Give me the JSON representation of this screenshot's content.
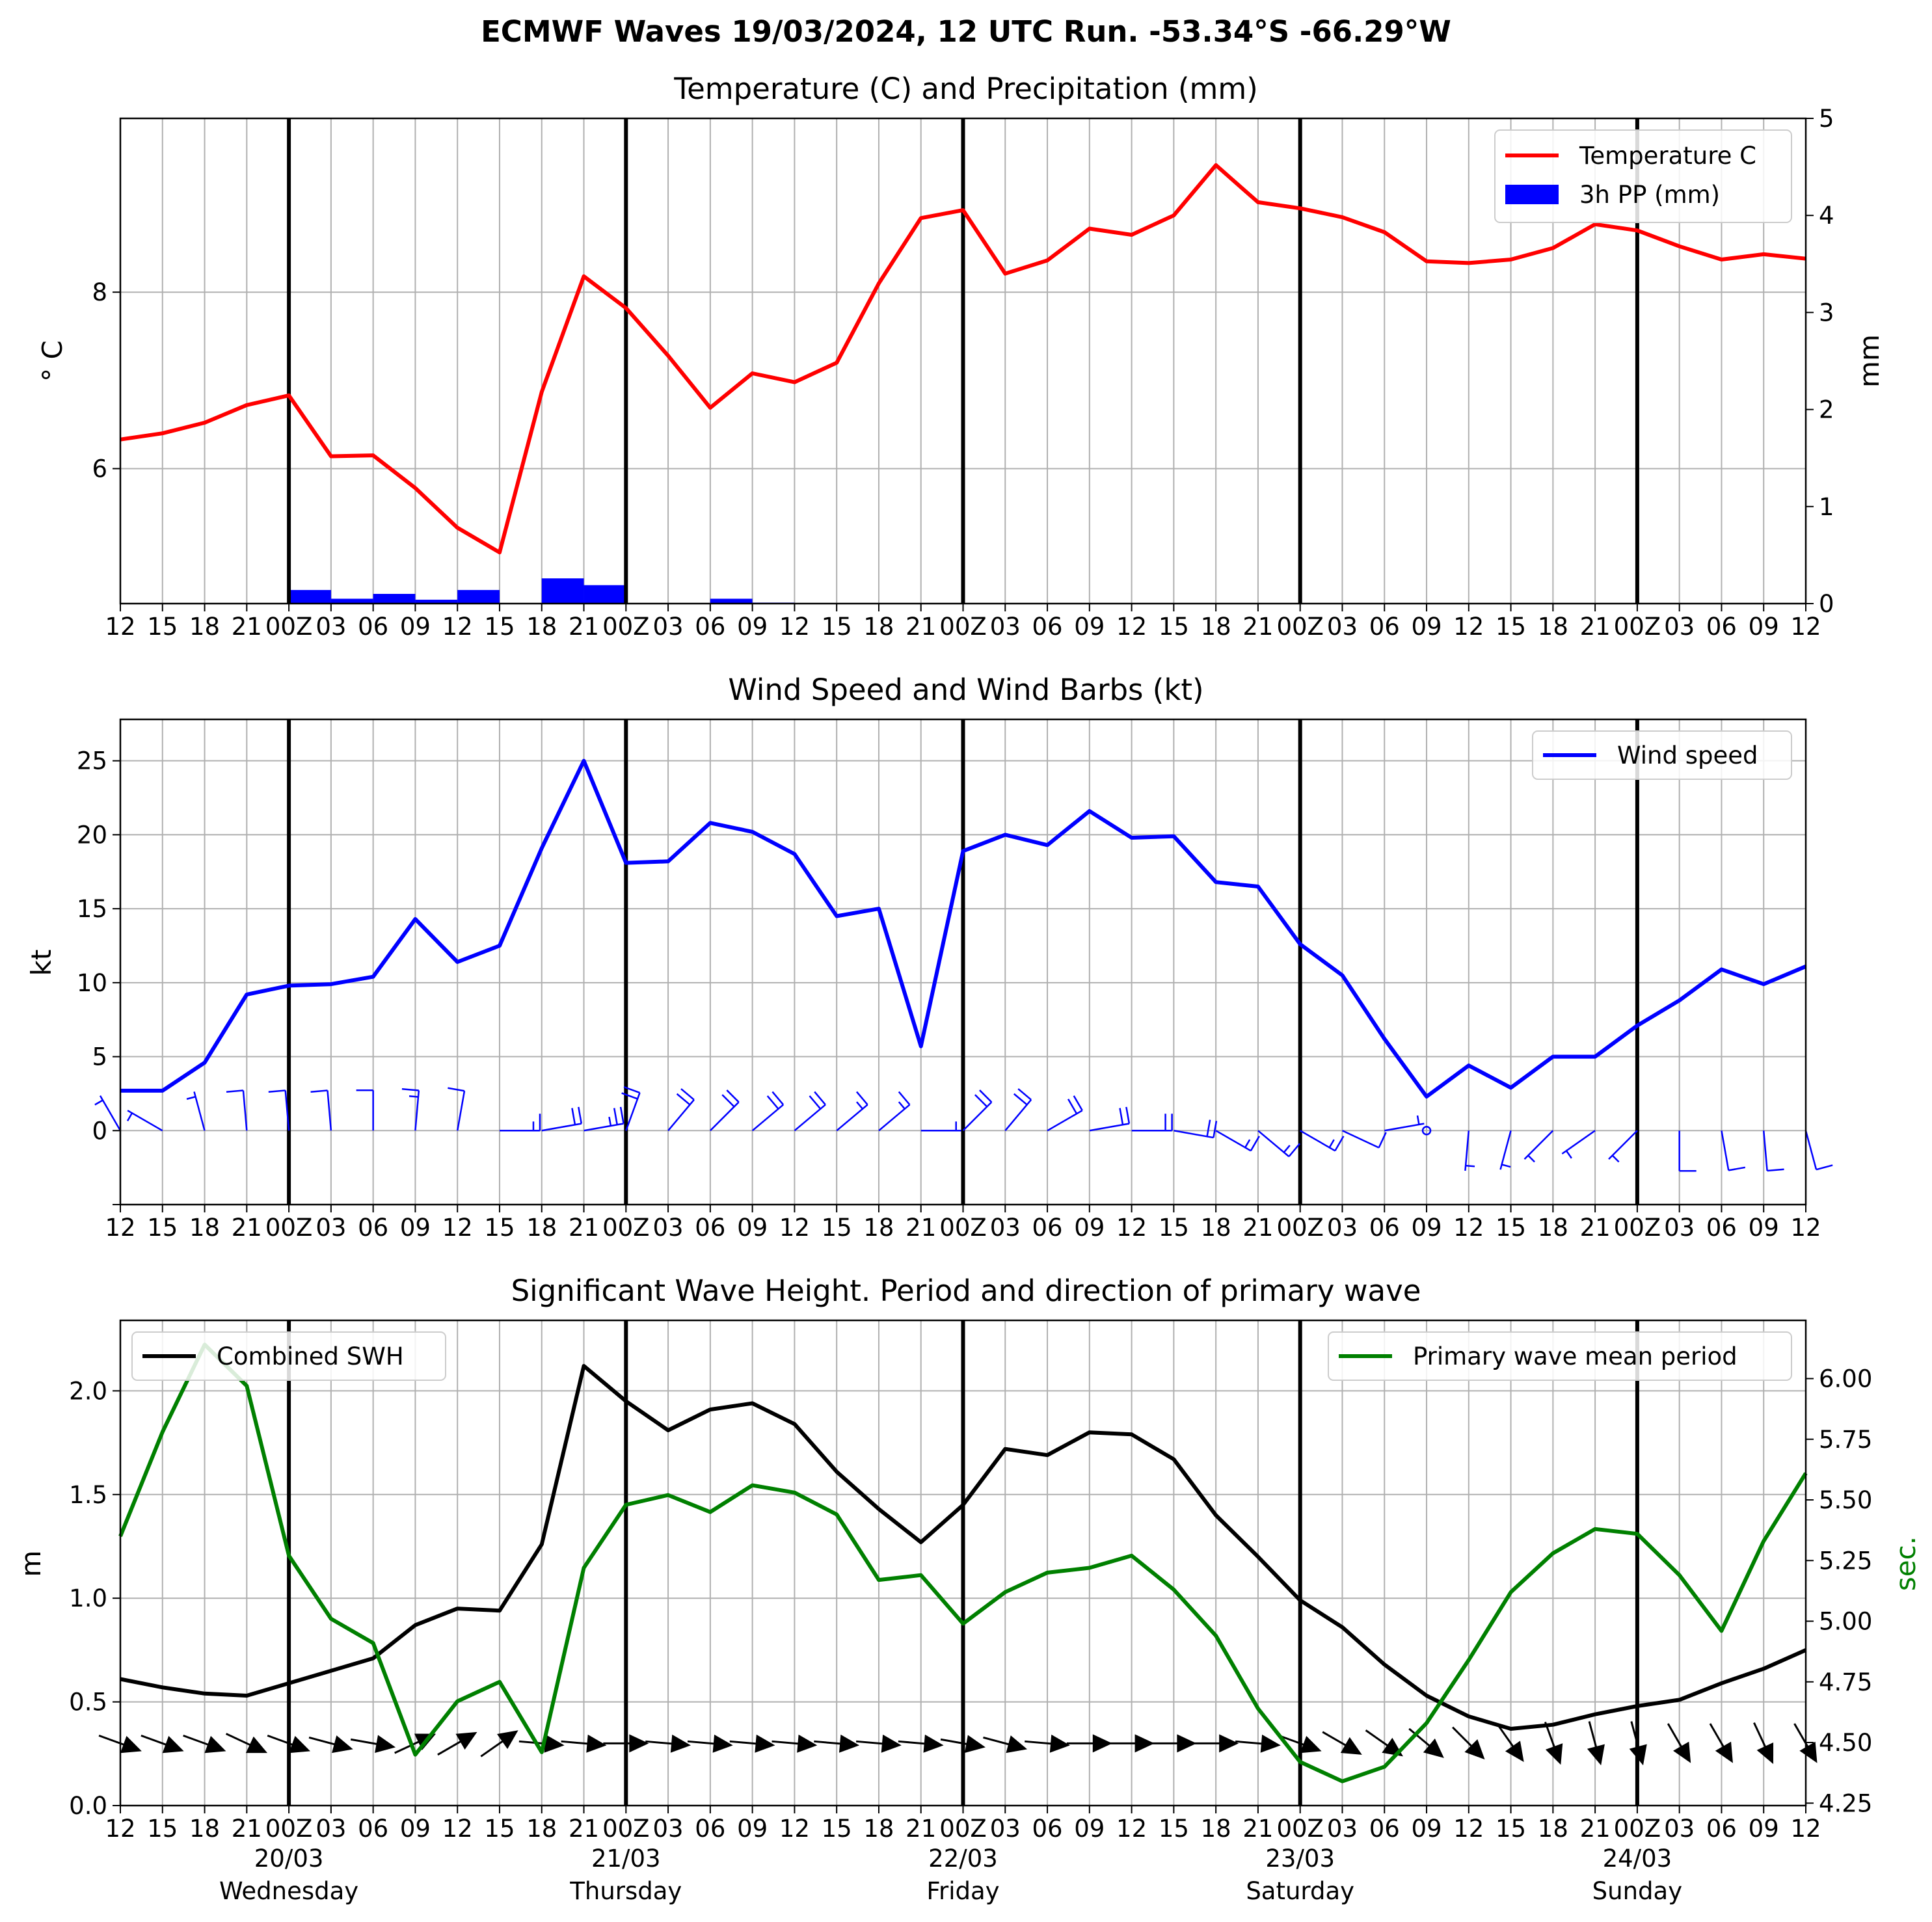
{
  "suptitle": "ECMWF Waves 19/03/2024, 12 UTC Run. -53.34°S -66.29°W",
  "x_tick_labels": [
    "12",
    "15",
    "18",
    "21",
    "00Z",
    "03",
    "06",
    "09",
    "12",
    "15",
    "18",
    "21",
    "00Z",
    "03",
    "06",
    "09",
    "12",
    "15",
    "18",
    "21",
    "00Z",
    "03",
    "06",
    "09",
    "12",
    "15",
    "18",
    "21",
    "00Z",
    "03",
    "06",
    "09",
    "12",
    "15",
    "18",
    "21",
    "00Z",
    "03",
    "06",
    "09",
    "12"
  ],
  "day_labels": [
    {
      "index": 4,
      "date": "20/03",
      "weekday": "Wednesday"
    },
    {
      "index": 12,
      "date": "21/03",
      "weekday": "Thursday"
    },
    {
      "index": 20,
      "date": "22/03",
      "weekday": "Friday"
    },
    {
      "index": 28,
      "date": "23/03",
      "weekday": "Saturday"
    },
    {
      "index": 36,
      "date": "24/03",
      "weekday": "Sunday"
    }
  ],
  "colors": {
    "temperature": "#ff0000",
    "precip": "#0000ff",
    "wind": "#0000ff",
    "swh": "#000000",
    "period": "#008000",
    "grid": "#b0b0b0"
  },
  "chart_data": [
    {
      "type": "line",
      "title": "Temperature (C) and Precipitation (mm)",
      "ylabel": "$^\\circ$C",
      "ylabel_display": "° C",
      "y2label": "mm",
      "ylim": [
        4.47,
        9.97
      ],
      "y2lim": [
        0,
        5
      ],
      "yticks": [
        6,
        8
      ],
      "y2ticks": [
        0,
        1,
        2,
        3,
        4,
        5
      ],
      "legend_position": "top-right",
      "legend": [
        "Temperature C",
        "3h PP (mm)"
      ],
      "series": [
        {
          "name": "Temperature C",
          "type": "line",
          "values": [
            6.33,
            6.4,
            6.52,
            6.72,
            6.83,
            6.14,
            6.15,
            5.78,
            5.33,
            5.05,
            6.87,
            8.18,
            7.82,
            7.28,
            6.69,
            7.08,
            6.98,
            7.2,
            8.1,
            8.84,
            8.93,
            8.21,
            8.36,
            8.72,
            8.65,
            8.87,
            9.44,
            9.02,
            8.95,
            8.85,
            8.68,
            8.35,
            8.33,
            8.37,
            8.5,
            8.77,
            8.7,
            8.52,
            8.37,
            8.43,
            8.38
          ]
        },
        {
          "name": "3h PP (mm)",
          "type": "bar",
          "values": [
            0,
            0,
            0,
            0,
            0.14,
            0.05,
            0.1,
            0.04,
            0.14,
            0,
            0.26,
            0.19,
            0,
            0,
            0.05,
            0.01,
            0,
            0,
            0,
            0,
            0,
            0,
            0,
            0,
            0,
            0,
            0,
            0,
            0,
            0,
            0,
            0,
            0,
            0,
            0,
            0,
            0,
            0,
            0,
            0
          ]
        }
      ]
    },
    {
      "type": "line",
      "title": "Wind Speed and Wind Barbs (kt)",
      "ylabel": "kt",
      "ylim": [
        -5,
        27.8
      ],
      "yticks": [
        0,
        5,
        10,
        15,
        20,
        25
      ],
      "legend_position": "top-right",
      "legend": [
        "Wind speed"
      ],
      "series": [
        {
          "name": "Wind speed",
          "values": [
            2.7,
            2.7,
            4.6,
            9.2,
            9.8,
            9.9,
            10.4,
            14.3,
            11.4,
            12.5,
            19.1,
            25.0,
            18.1,
            18.2,
            20.8,
            20.2,
            18.7,
            14.5,
            15.0,
            5.7,
            18.9,
            20.0,
            19.3,
            21.6,
            19.8,
            19.9,
            16.8,
            16.5,
            12.6,
            10.5,
            6.2,
            2.3,
            4.4,
            2.9,
            5.0,
            5.0,
            7.1,
            8.8,
            10.9,
            9.9,
            11.1
          ]
        },
        {
          "name": "Wind direction (deg from)",
          "values": [
            330,
            300,
            345,
            355,
            355,
            355,
            360,
            5,
            10,
            90,
            80,
            80,
            20,
            40,
            45,
            50,
            50,
            50,
            50,
            90,
            45,
            40,
            60,
            80,
            90,
            100,
            120,
            130,
            120,
            115,
            80,
            0,
            185,
            195,
            225,
            235,
            225,
            180,
            170,
            175,
            165
          ]
        }
      ]
    },
    {
      "type": "line",
      "title": "Significant Wave Height. Period and direction of primary wave",
      "ylabel": "m",
      "y2label": "sec.",
      "ylim": [
        0,
        2.34
      ],
      "y2lim": [
        4.24,
        6.24
      ],
      "yticks": [
        0.0,
        0.5,
        1.0,
        1.5,
        2.0
      ],
      "y2ticks": [
        4.25,
        4.5,
        4.75,
        5.0,
        5.25,
        5.5,
        5.75,
        6.0
      ],
      "ytick_labels": [
        "0.0",
        "0.5",
        "1.0",
        "1.5",
        "2.0"
      ],
      "y2tick_labels": [
        "4.25",
        "4.50",
        "4.75",
        "5.00",
        "5.25",
        "5.50",
        "5.75",
        "6.00"
      ],
      "legend_left": [
        "Combined SWH"
      ],
      "legend_right": [
        "Primary wave mean period"
      ],
      "series": [
        {
          "name": "Combined SWH",
          "values": [
            0.61,
            0.57,
            0.54,
            0.53,
            0.59,
            0.65,
            0.71,
            0.87,
            0.95,
            0.94,
            1.26,
            2.12,
            1.95,
            1.81,
            1.91,
            1.94,
            1.84,
            1.61,
            1.43,
            1.27,
            1.45,
            1.72,
            1.69,
            1.8,
            1.79,
            1.67,
            1.4,
            1.2,
            0.99,
            0.86,
            0.68,
            0.53,
            0.43,
            0.37,
            0.39,
            0.44,
            0.48,
            0.51,
            0.59,
            0.66,
            0.75
          ]
        },
        {
          "name": "Primary wave mean period",
          "values": [
            5.35,
            5.78,
            6.14,
            5.97,
            5.27,
            5.01,
            4.91,
            4.45,
            4.67,
            4.75,
            4.46,
            5.22,
            5.48,
            5.52,
            5.45,
            5.56,
            5.53,
            5.44,
            5.17,
            5.19,
            4.99,
            5.12,
            5.2,
            5.22,
            5.27,
            5.13,
            4.94,
            4.64,
            4.42,
            4.34,
            4.4,
            4.58,
            4.84,
            5.12,
            5.28,
            5.38,
            5.36,
            5.19,
            4.96,
            5.33,
            5.61
          ]
        },
        {
          "name": "Primary wave direction (deg from)",
          "values": [
            290,
            290,
            290,
            295,
            290,
            285,
            280,
            245,
            240,
            235,
            275,
            275,
            270,
            275,
            275,
            275,
            275,
            275,
            275,
            275,
            280,
            285,
            275,
            270,
            270,
            270,
            270,
            275,
            290,
            300,
            305,
            310,
            315,
            325,
            340,
            345,
            345,
            330,
            330,
            335,
            330
          ]
        }
      ]
    }
  ]
}
